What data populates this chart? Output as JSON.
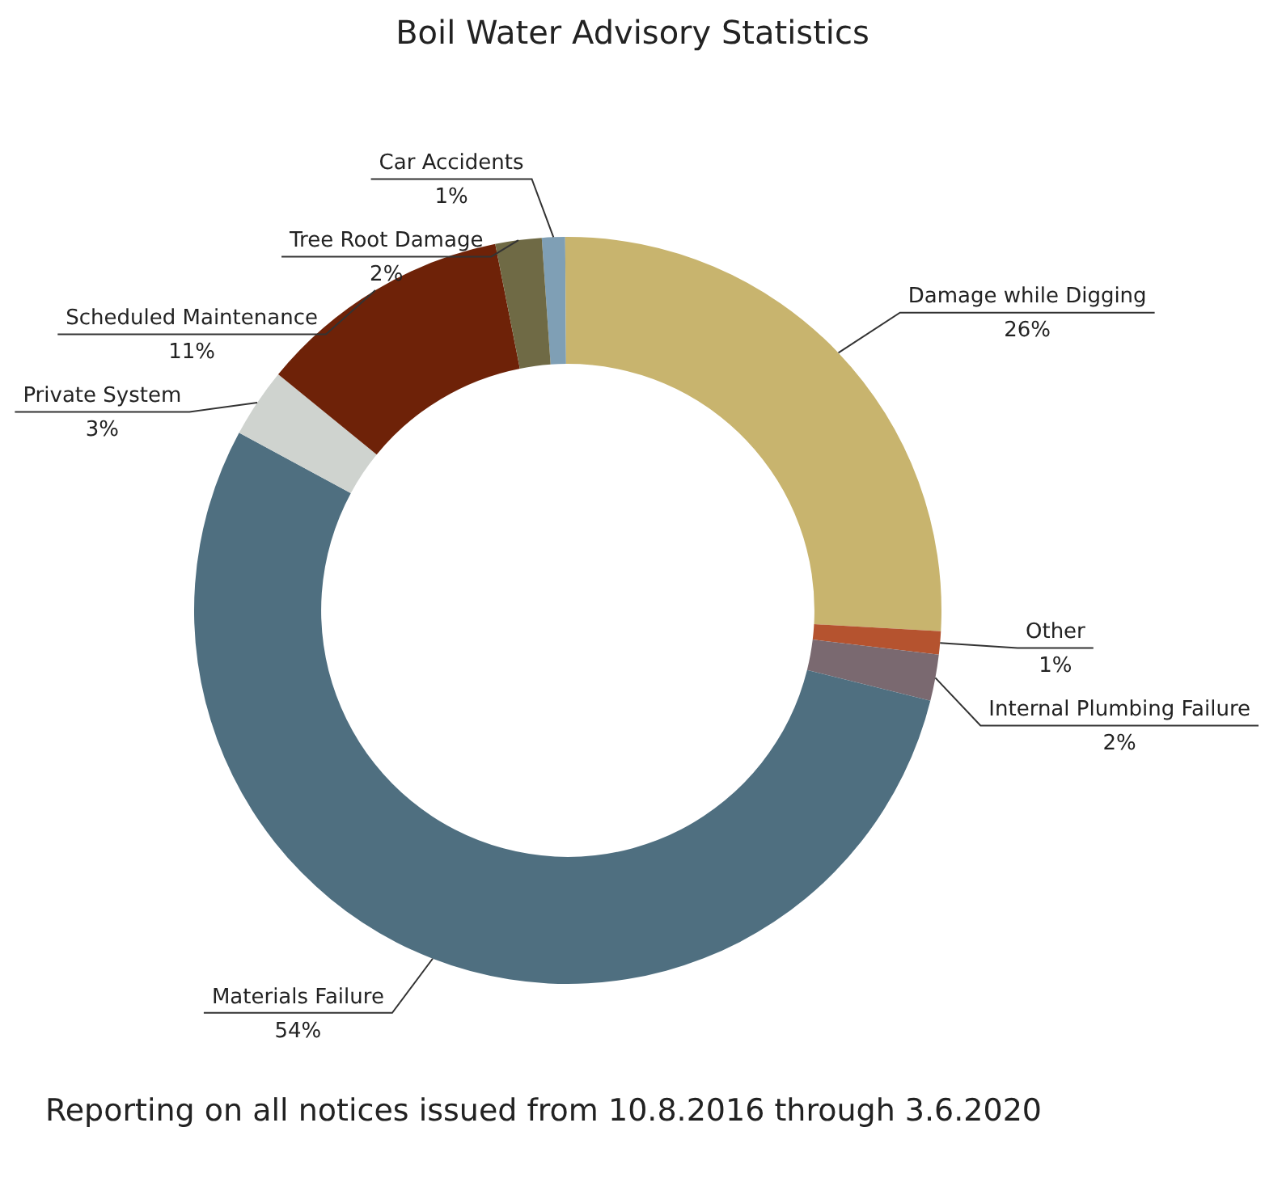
{
  "chart_data": {
    "type": "donut",
    "title": "Boil Water Advisory Statistics",
    "categories": [
      "Car Accidents",
      "Damage while Digging",
      "Other",
      "Internal Plumbing Failure",
      "Materials Failure",
      "Private System",
      "Scheduled Maintenance",
      "Tree Root Damage"
    ],
    "values": [
      1,
      26,
      1,
      2,
      54,
      3,
      11,
      2
    ],
    "value_labels": [
      "1%",
      "26%",
      "1%",
      "2%",
      "54%",
      "3%",
      "11%",
      "2%"
    ],
    "colors": [
      "#7f9fb5",
      "#c8b46e",
      "#b5532f",
      "#7a6970",
      "#4f6f80",
      "#cfd3cf",
      "#6e2208",
      "#6f6a45"
    ],
    "legend": false,
    "annotations": [
      "Reporting on all notices issued from 10.8.2016 through 3.6.2020"
    ]
  }
}
